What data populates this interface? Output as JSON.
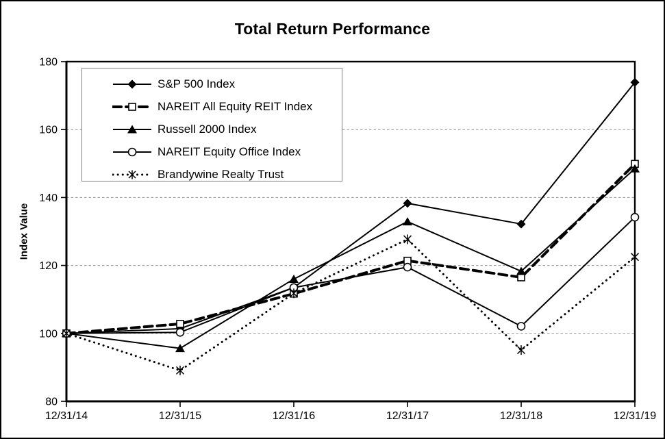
{
  "chart_data": {
    "type": "line",
    "title": "Total Return Performance",
    "ylabel": "Index Value",
    "xlabel": "",
    "x_categories": [
      "12/31/14",
      "12/31/15",
      "12/31/16",
      "12/31/17",
      "12/31/18",
      "12/31/19"
    ],
    "y_ticks": [
      80,
      100,
      120,
      140,
      160,
      180
    ],
    "ylim": [
      80,
      180
    ],
    "grid": "horizontal dashed gray lines at 100/120/140/160",
    "legend_position": "inside top-left, boxed",
    "series": [
      {
        "name": "S&P 500 Index",
        "marker": "diamond-filled",
        "line": "solid",
        "values": [
          100,
          101.4,
          113.5,
          138.3,
          132.2,
          173.9
        ]
      },
      {
        "name": "NAREIT All Equity REIT Index",
        "marker": "square-open",
        "line": "dashed",
        "values": [
          100,
          102.8,
          111.7,
          121.4,
          116.5,
          149.9
        ]
      },
      {
        "name": "Russell 2000 Index",
        "marker": "triangle-filled",
        "line": "solid",
        "values": [
          100,
          95.6,
          116.0,
          132.9,
          118.3,
          148.5
        ]
      },
      {
        "name": "NAREIT Equity Office Index",
        "marker": "circle-open",
        "line": "solid",
        "values": [
          100,
          100.3,
          113.5,
          119.5,
          102.1,
          134.2
        ]
      },
      {
        "name": "Brandywine Realty Trust",
        "marker": "star",
        "line": "dotted",
        "values": [
          100,
          89.1,
          111.8,
          127.7,
          95.1,
          122.5
        ]
      }
    ],
    "colors": {
      "series": "#000000",
      "grid": "#909090",
      "frame": "#000000",
      "background": "#ffffff",
      "legend_border": "#7f7f7f"
    }
  }
}
